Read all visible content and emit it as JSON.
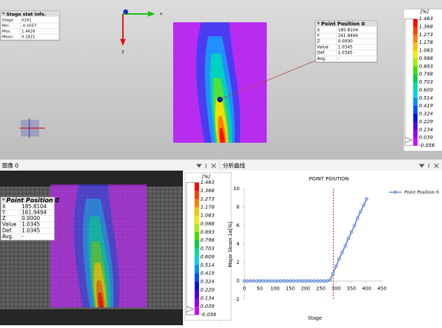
{
  "stage_stat": {
    "title": "Stage stat info.",
    "rows": [
      [
        "Stage",
        "0291"
      ],
      [
        "Min.",
        "-0.0557"
      ],
      [
        "Max.",
        "1.4626"
      ],
      [
        "Mean.",
        "0.1821"
      ]
    ]
  },
  "axis_gizmo": {
    "x": "x",
    "y": "y"
  },
  "point_position": {
    "title": "Point Position 0",
    "rows": [
      [
        "X",
        "185.8104"
      ],
      [
        "Y",
        "161.9494"
      ],
      [
        "Z",
        "0.0000"
      ],
      [
        "Value",
        "1.0345"
      ],
      [
        "Def.",
        "1.0345"
      ],
      [
        "Avg.",
        "-"
      ]
    ]
  },
  "legend": {
    "unit": "[%]",
    "labels": [
      "1.463",
      "1.368",
      "1.273",
      "1.178",
      "1.083",
      "0.988",
      "0.893",
      "0.798",
      "0.703",
      "0.609",
      "0.514",
      "0.419",
      "0.324",
      "0.229",
      "0.134",
      "0.039",
      "-0.056"
    ],
    "colors": [
      "#ff0000",
      "#ff4000",
      "#ff8000",
      "#ffc000",
      "#f0f000",
      "#a0f000",
      "#40e000",
      "#00d040",
      "#00e0a0",
      "#00d0f0",
      "#0090ff",
      "#0050ff",
      "#0010e0",
      "#5000e0",
      "#9000f0",
      "#d000ff"
    ]
  },
  "image_panel": {
    "title": "图像 0"
  },
  "analysis_panel": {
    "title": "分析曲线"
  },
  "chart_data": {
    "type": "line",
    "title": "POINT POSITION",
    "x_label": "Stage",
    "y_label": "Major Strain 1e[%]",
    "x": [
      0,
      10,
      20,
      30,
      40,
      50,
      60,
      70,
      80,
      90,
      100,
      110,
      120,
      130,
      140,
      150,
      160,
      170,
      180,
      190,
      200,
      210,
      220,
      230,
      240,
      250,
      260,
      270,
      280,
      290,
      300,
      310,
      320,
      330,
      340,
      350,
      360,
      370,
      380,
      390,
      400
    ],
    "series": [
      {
        "name": "Point Position 0",
        "color": "#4a72c8",
        "values": [
          0,
          0,
          0,
          0,
          0,
          0,
          0,
          0,
          0,
          0,
          0,
          0,
          0,
          0,
          0,
          0,
          0,
          0,
          0,
          0,
          0,
          0,
          0,
          0,
          0,
          0,
          0,
          0,
          0.1,
          0.8,
          1.6,
          2.4,
          3.1,
          3.8,
          4.6,
          5.3,
          6.0,
          6.8,
          7.5,
          8.2,
          8.9
        ]
      }
    ],
    "xlim": [
      0,
      450
    ],
    "ylim": [
      -2,
      10
    ],
    "xticks": [
      0,
      50,
      100,
      150,
      200,
      250,
      300,
      350,
      400,
      450
    ],
    "yticks": [
      -2,
      0,
      2,
      4,
      6,
      8,
      10
    ],
    "marker_x": 291,
    "marker_color": "#e03030"
  }
}
